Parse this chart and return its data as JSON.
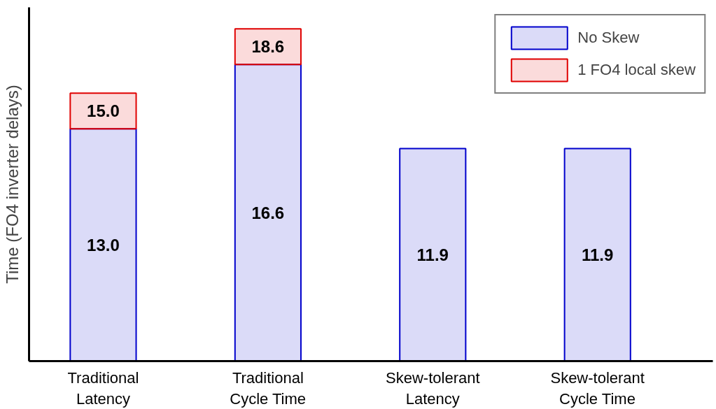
{
  "chart_data": {
    "type": "bar",
    "stacked": true,
    "ylabel": "Time (FO4 inverter delays)",
    "categories": [
      "Traditional\nLatency",
      "Traditional\nCycle Time",
      "Skew-tolerant\nLatency",
      "Skew-tolerant\nCycle Time"
    ],
    "series": [
      {
        "name": "No Skew",
        "color": "#0000cc",
        "values": [
          13.0,
          16.6,
          11.9,
          11.9
        ],
        "value_labels": [
          "13.0",
          "16.6",
          "11.9",
          "11.9"
        ]
      },
      {
        "name": "1 FO4 local skew",
        "color": "#e00000",
        "values": [
          2.0,
          2.0,
          null,
          null
        ]
      }
    ],
    "totals": [
      "15.0",
      "18.6",
      null,
      null
    ],
    "ylim": [
      0,
      19.8
    ],
    "tick_labels": "x",
    "grid": false,
    "legend": "top right"
  }
}
